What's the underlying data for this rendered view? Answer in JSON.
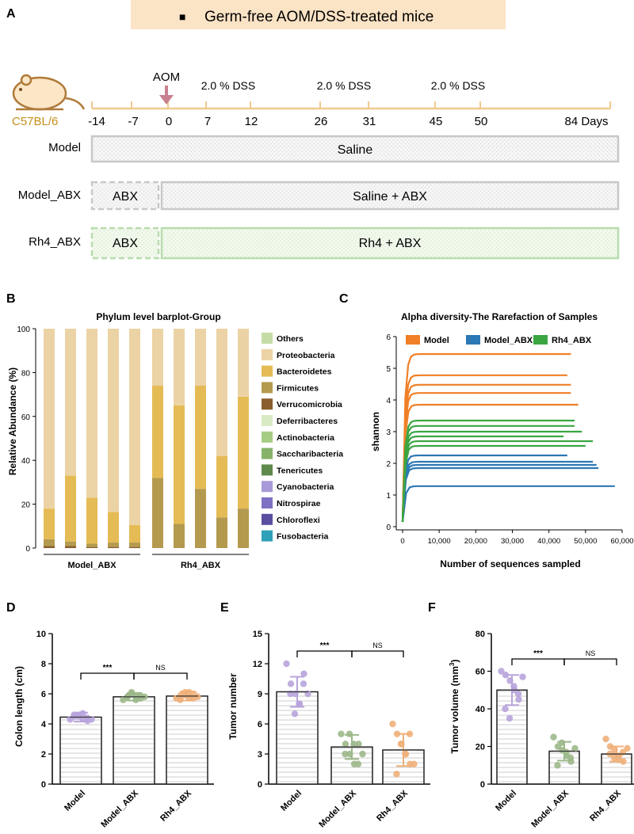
{
  "colors": {
    "banner_bg": "#fbe3c5",
    "timeline": "#f0c98f",
    "aom_arrow": "#c9808f",
    "model_border": "#c8c8c8",
    "model_fill": "#f3f3f3",
    "rh4_border": "#b8dcae",
    "rh4_fill": "#eef7ea",
    "mouse_body": "#fbe6c6",
    "mouse_outline": "#b07a3a",
    "label_gold": "#c4901a",
    "tick_color": "#f0c98f"
  },
  "panel_labels": {
    "a": "A",
    "b": "B",
    "c": "C",
    "d": "D",
    "e": "E",
    "f": "F"
  },
  "panel_a": {
    "banner_bullet": "■",
    "banner_title": "Germ-free AOM/DSS-treated mice",
    "strain": "C57BL/6",
    "mouse_icon": "mouse-icon",
    "days": [
      "-14",
      "-7",
      "0",
      "7",
      "12",
      "26",
      "31",
      "45",
      "50",
      "84 Days"
    ],
    "aom_label": "AOM",
    "dss_labels": [
      "2.0 % DSS",
      "2.0 % DSS",
      "2.0 % DSS"
    ],
    "groups": [
      {
        "name": "Model",
        "abx_label": "",
        "main_label": "Saline"
      },
      {
        "name": "Model_ABX",
        "abx_label": "ABX",
        "main_label": "Saline + ABX"
      },
      {
        "name": "Rh4_ABX",
        "abx_label": "ABX",
        "main_label": "Rh4 + ABX"
      }
    ]
  },
  "chart_data": [
    {
      "panel": "B",
      "type": "bar",
      "stacked": true,
      "title": "Phylum level barplot-Group",
      "xlabel": "",
      "ylabel": "Relative Abundance (%)",
      "ylim": [
        0,
        100
      ],
      "yticks": [
        "0",
        "20",
        "40",
        "60",
        "80",
        "100"
      ],
      "group_labels": [
        "Model_ABX",
        "Rh4_ABX"
      ],
      "samples_per_group": 5,
      "legend_position": "right",
      "series": [
        {
          "name": "Fusobacteria",
          "color": "#2ea0b8",
          "values": [
            0,
            0,
            0,
            0,
            0,
            0,
            0,
            0,
            0,
            0
          ]
        },
        {
          "name": "Chloroflexi",
          "color": "#5a4ea0",
          "values": [
            0,
            0,
            0,
            0,
            0,
            0,
            0,
            0,
            0,
            0
          ]
        },
        {
          "name": "Nitrospirae",
          "color": "#7e70c2",
          "values": [
            0,
            0,
            0,
            0,
            0,
            0,
            0,
            0,
            0,
            0
          ]
        },
        {
          "name": "Cyanobacteria",
          "color": "#a89ad8",
          "values": [
            0,
            0,
            0,
            0,
            0,
            0,
            0,
            0,
            0,
            0
          ]
        },
        {
          "name": "Tenericutes",
          "color": "#5f8a4c",
          "values": [
            0,
            0,
            0,
            0,
            0,
            0,
            0,
            0,
            0,
            0
          ]
        },
        {
          "name": "Saccharibacteria",
          "color": "#86b26a",
          "values": [
            0,
            0,
            0,
            0,
            0,
            0,
            0,
            0,
            0,
            0
          ]
        },
        {
          "name": "Actinobacteria",
          "color": "#a6cc83",
          "values": [
            0,
            0,
            0,
            0,
            0,
            0,
            0,
            0,
            0,
            0
          ]
        },
        {
          "name": "Deferribacteres",
          "color": "#d8eac4",
          "values": [
            0,
            0,
            0,
            0,
            0,
            0,
            0,
            0,
            0,
            0
          ]
        },
        {
          "name": "Verrucomicrobia",
          "color": "#8a5e2e",
          "values": [
            1,
            1,
            0.5,
            0.5,
            0.5,
            0,
            0,
            0,
            0,
            0
          ]
        },
        {
          "name": "Firmicutes",
          "color": "#b49a4e",
          "values": [
            3,
            2,
            1.5,
            2,
            2,
            32,
            11,
            27,
            14,
            18
          ]
        },
        {
          "name": "Bacteroidetes",
          "color": "#e5bb55",
          "values": [
            14,
            30,
            21,
            14,
            8,
            42,
            54,
            47,
            28,
            51
          ]
        },
        {
          "name": "Proteobacteria",
          "color": "#ebd3a5",
          "values": [
            82,
            67,
            77,
            83.5,
            89.5,
            26,
            35,
            26,
            58,
            31
          ]
        },
        {
          "name": "Others",
          "color": "#c6dca6",
          "values": [
            0,
            0,
            0,
            0,
            0,
            0,
            0,
            0,
            0,
            0
          ]
        }
      ],
      "legend_order": [
        "Others",
        "Proteobacteria",
        "Bacteroidetes",
        "Firmicutes",
        "Verrucomicrobia",
        "Deferribacteres",
        "Actinobacteria",
        "Saccharibacteria",
        "Tenericutes",
        "Cyanobacteria",
        "Nitrospirae",
        "Chloroflexi",
        "Fusobacteria"
      ]
    },
    {
      "panel": "C",
      "type": "line",
      "title": "Alpha diversity-The Rarefaction of Samples",
      "xlabel": "Number of sequences sampled",
      "ylabel": "shannon",
      "xlim": [
        0,
        60000
      ],
      "ylim": [
        0,
        6
      ],
      "xticks": [
        0,
        10000,
        20000,
        30000,
        40000,
        50000,
        60000
      ],
      "xtick_labels": [
        "0",
        "10,000",
        "20,000",
        "30,000",
        "40,000",
        "50,000",
        "60,000"
      ],
      "yticks": [
        "0",
        "1",
        "2",
        "3",
        "4",
        "5",
        "6"
      ],
      "legend_position": "top",
      "series": [
        {
          "name": "Model",
          "color": "#f07f26",
          "curves": [
            {
              "plateau": 5.45,
              "end": 46000
            },
            {
              "plateau": 4.78,
              "end": 45000
            },
            {
              "plateau": 4.48,
              "end": 46000
            },
            {
              "plateau": 4.22,
              "end": 46000
            },
            {
              "plateau": 3.85,
              "end": 48000
            }
          ]
        },
        {
          "name": "Model_ABX",
          "color": "#2c78b4",
          "curves": [
            {
              "plateau": 2.25,
              "end": 45000
            },
            {
              "plateau": 2.05,
              "end": 52000
            },
            {
              "plateau": 1.95,
              "end": 53000
            },
            {
              "plateau": 1.85,
              "end": 53500
            },
            {
              "plateau": 1.28,
              "end": 58000
            }
          ]
        },
        {
          "name": "Rh4_ABX",
          "color": "#3aa642",
          "curves": [
            {
              "plateau": 3.35,
              "end": 47000
            },
            {
              "plateau": 3.18,
              "end": 47000
            },
            {
              "plateau": 3.0,
              "end": 49000
            },
            {
              "plateau": 2.85,
              "end": 44000
            },
            {
              "plateau": 2.7,
              "end": 52000
            },
            {
              "plateau": 2.55,
              "end": 50000
            }
          ]
        }
      ]
    },
    {
      "panel": "D",
      "type": "bar",
      "categories": [
        "Model",
        "Model_ABX",
        "Rh4_ABX"
      ],
      "values": [
        4.45,
        5.8,
        5.85
      ],
      "errors": [
        0.3,
        0.25,
        0.3
      ],
      "points": [
        [
          4.3,
          4.5,
          4.6,
          4.4,
          4.2,
          4.6,
          4.5,
          4.7,
          4.4,
          4.3
        ],
        [
          5.6,
          5.8,
          6.0,
          5.9,
          5.7,
          5.8,
          6.1,
          5.6,
          5.9,
          5.8
        ],
        [
          5.7,
          5.9,
          6.1,
          5.8,
          6.0,
          5.6,
          5.9,
          6.1,
          5.7,
          5.8
        ]
      ],
      "point_colors": [
        "#b8a4dc",
        "#9cb88a",
        "#f0b07a"
      ],
      "ylabel": "Colon length (cm)",
      "xlabel": "",
      "ylim": [
        0,
        10
      ],
      "yticks": [
        "0",
        "2",
        "4",
        "6",
        "8",
        "10"
      ],
      "sig": [
        "***",
        "NS"
      ]
    },
    {
      "panel": "E",
      "type": "bar",
      "categories": [
        "Model",
        "Model_ABX",
        "Rh4_ABX"
      ],
      "values": [
        9.2,
        3.7,
        3.4
      ],
      "errors": [
        1.5,
        1.2,
        1.6
      ],
      "points": [
        [
          12,
          10,
          9,
          8,
          11,
          9,
          7,
          8,
          10,
          9
        ],
        [
          5,
          4,
          3,
          2,
          4,
          3,
          5,
          4,
          2,
          3
        ],
        [
          6,
          5,
          4,
          3,
          2,
          1,
          4,
          3,
          5,
          2
        ]
      ],
      "point_colors": [
        "#b8a4dc",
        "#9cb88a",
        "#f0b07a"
      ],
      "ylabel": "Tumor number",
      "xlabel": "",
      "ylim": [
        0,
        15
      ],
      "yticks": [
        "0",
        "3",
        "6",
        "9",
        "12",
        "15"
      ],
      "sig": [
        "***",
        "NS"
      ]
    },
    {
      "panel": "F",
      "type": "bar",
      "categories": [
        "Model",
        "Model_ABX",
        "Rh4_ABX"
      ],
      "values": [
        50,
        17.5,
        16
      ],
      "errors": [
        8,
        5,
        4
      ],
      "points": [
        [
          60,
          58,
          55,
          50,
          45,
          40,
          35,
          52,
          48,
          57
        ],
        [
          25,
          20,
          18,
          15,
          12,
          10,
          22,
          17,
          14,
          19
        ],
        [
          24,
          20,
          18,
          15,
          12,
          16,
          14,
          13,
          17,
          19
        ]
      ],
      "point_colors": [
        "#b8a4dc",
        "#9cb88a",
        "#f0b07a"
      ],
      "ylabel": "Tumor volume (mm",
      "ylabel_sup": "3",
      "ylabel_end": ")",
      "xlabel": "",
      "ylim": [
        0,
        80
      ],
      "yticks": [
        "0",
        "20",
        "40",
        "60",
        "80"
      ],
      "sig": [
        "***",
        "NS"
      ]
    }
  ]
}
